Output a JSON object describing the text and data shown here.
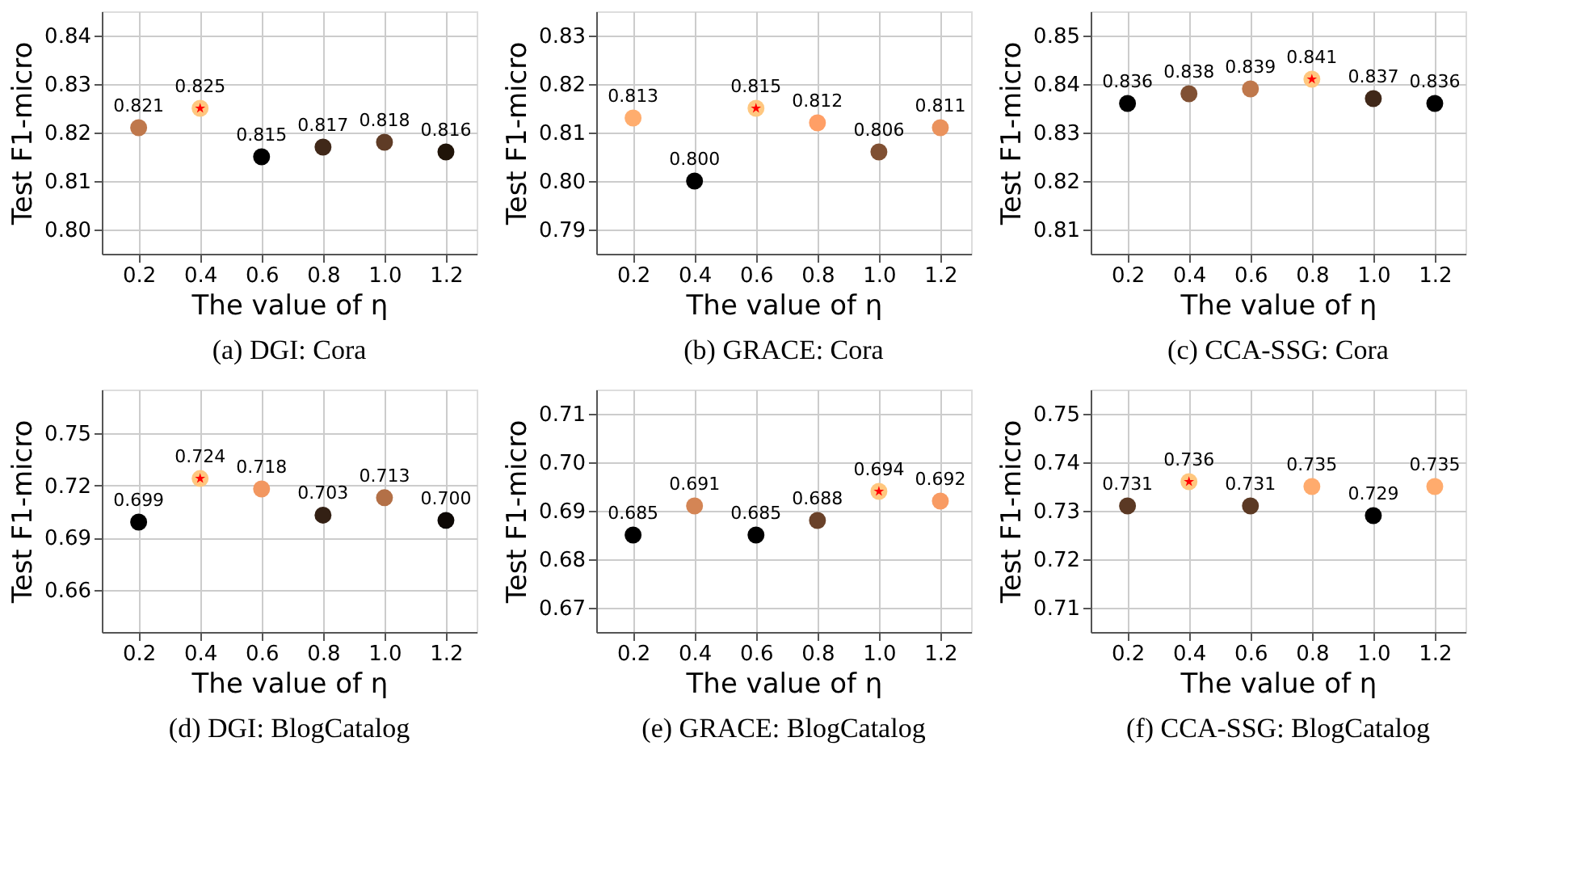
{
  "chart_data": [
    {
      "type": "scatter",
      "title": "(a) DGI: Cora",
      "xlabel": "The value of η",
      "ylabel": "Test F1-micro",
      "x": [
        0.2,
        0.4,
        0.6,
        0.8,
        1.0,
        1.2
      ],
      "xlim": [
        0.08,
        1.3
      ],
      "xticks": [
        {
          "value": 0.2,
          "label": "0.2"
        },
        {
          "value": 0.4,
          "label": "0.4"
        },
        {
          "value": 0.6,
          "label": "0.6"
        },
        {
          "value": 0.8,
          "label": "0.8"
        },
        {
          "value": 1.0,
          "label": "1.0"
        },
        {
          "value": 1.2,
          "label": "1.2"
        }
      ],
      "ylim": [
        0.795,
        0.845
      ],
      "yticks": [
        {
          "value": 0.8,
          "label": "0.80"
        },
        {
          "value": 0.81,
          "label": "0.81"
        },
        {
          "value": 0.82,
          "label": "0.82"
        },
        {
          "value": 0.83,
          "label": "0.83"
        },
        {
          "value": 0.84,
          "label": "0.84"
        }
      ],
      "grid": true,
      "marker": "circle",
      "series": [
        {
          "values": [
            0.821,
            0.825,
            0.815,
            0.817,
            0.818,
            0.816
          ],
          "colors": [
            "#bf784c",
            "#ffc77f",
            "#000000",
            "#402819",
            "#5f3c26",
            "#201409"
          ],
          "data_labels": true
        },
        {
          "x": [
            0.4
          ],
          "values": [
            0.825
          ],
          "color": "#ff0000",
          "marker": "star"
        }
      ]
    },
    {
      "type": "scatter",
      "title": "(b) GRACE: Cora",
      "xlabel": "The value of η",
      "ylabel": "Test F1-micro",
      "x": [
        0.2,
        0.4,
        0.6,
        0.8,
        1.0,
        1.2
      ],
      "xlim": [
        0.08,
        1.3
      ],
      "xticks": [
        {
          "value": 0.2,
          "label": "0.2"
        },
        {
          "value": 0.4,
          "label": "0.4"
        },
        {
          "value": 0.6,
          "label": "0.6"
        },
        {
          "value": 0.8,
          "label": "0.8"
        },
        {
          "value": 1.0,
          "label": "1.0"
        },
        {
          "value": 1.2,
          "label": "1.2"
        }
      ],
      "ylim": [
        0.785,
        0.835
      ],
      "yticks": [
        {
          "value": 0.79,
          "label": "0.79"
        },
        {
          "value": 0.8,
          "label": "0.80"
        },
        {
          "value": 0.81,
          "label": "0.81"
        },
        {
          "value": 0.82,
          "label": "0.82"
        },
        {
          "value": 0.83,
          "label": "0.83"
        }
      ],
      "grid": true,
      "marker": "circle",
      "series": [
        {
          "values": [
            0.813,
            0.8,
            0.815,
            0.812,
            0.806,
            0.811
          ],
          "colors": [
            "#ffad6e",
            "#000000",
            "#ffc77f",
            "#ff9f66",
            "#805033",
            "#ea925d"
          ],
          "data_labels": true,
          "value_labels": [
            "0.813",
            "0.800",
            "0.815",
            "0.812",
            "0.806",
            "0.811"
          ]
        },
        {
          "x": [
            0.6
          ],
          "values": [
            0.815
          ],
          "color": "#ff0000",
          "marker": "star"
        }
      ]
    },
    {
      "type": "scatter",
      "title": "(c) CCA-SSG: Cora",
      "xlabel": "The value of η",
      "ylabel": "Test F1-micro",
      "x": [
        0.2,
        0.4,
        0.6,
        0.8,
        1.0,
        1.2
      ],
      "xlim": [
        0.08,
        1.3
      ],
      "xticks": [
        {
          "value": 0.2,
          "label": "0.2"
        },
        {
          "value": 0.4,
          "label": "0.4"
        },
        {
          "value": 0.6,
          "label": "0.6"
        },
        {
          "value": 0.8,
          "label": "0.8"
        },
        {
          "value": 1.0,
          "label": "1.0"
        },
        {
          "value": 1.2,
          "label": "1.2"
        }
      ],
      "ylim": [
        0.805,
        0.855
      ],
      "yticks": [
        {
          "value": 0.81,
          "label": "0.81"
        },
        {
          "value": 0.82,
          "label": "0.82"
        },
        {
          "value": 0.83,
          "label": "0.83"
        },
        {
          "value": 0.84,
          "label": "0.84"
        },
        {
          "value": 0.85,
          "label": "0.85"
        }
      ],
      "grid": true,
      "marker": "circle",
      "series": [
        {
          "values": [
            0.836,
            0.838,
            0.839,
            0.841,
            0.837,
            0.836
          ],
          "colors": [
            "#000000",
            "#805033",
            "#bf784c",
            "#ffc77f",
            "#402819",
            "#000000"
          ],
          "data_labels": true
        },
        {
          "x": [
            0.8
          ],
          "values": [
            0.841
          ],
          "color": "#ff0000",
          "marker": "star"
        }
      ]
    },
    {
      "type": "scatter",
      "title": "(d) DGI: BlogCatalog",
      "xlabel": "The value of η",
      "ylabel": "Test F1-micro",
      "x": [
        0.2,
        0.4,
        0.6,
        0.8,
        1.0,
        1.2
      ],
      "xlim": [
        0.08,
        1.3
      ],
      "xticks": [
        {
          "value": 0.2,
          "label": "0.2"
        },
        {
          "value": 0.4,
          "label": "0.4"
        },
        {
          "value": 0.6,
          "label": "0.6"
        },
        {
          "value": 0.8,
          "label": "0.8"
        },
        {
          "value": 1.0,
          "label": "1.0"
        },
        {
          "value": 1.2,
          "label": "1.2"
        }
      ],
      "ylim": [
        0.636,
        0.775
      ],
      "yticks": [
        {
          "value": 0.66,
          "label": "0.66"
        },
        {
          "value": 0.69,
          "label": "0.69"
        },
        {
          "value": 0.72,
          "label": "0.72"
        },
        {
          "value": 0.75,
          "label": "0.75"
        }
      ],
      "grid": true,
      "marker": "circle",
      "series": [
        {
          "values": [
            0.699,
            0.724,
            0.718,
            0.703,
            0.713,
            0.7
          ],
          "colors": [
            "#000000",
            "#ffc77f",
            "#f29760",
            "#332014",
            "#b37047",
            "#0d0805"
          ],
          "data_labels": true,
          "value_labels": [
            "0.699",
            "0.724",
            "0.718",
            "0.703",
            "0.713",
            "0.700"
          ]
        },
        {
          "x": [
            0.4
          ],
          "values": [
            0.724
          ],
          "color": "#ff0000",
          "marker": "star"
        }
      ]
    },
    {
      "type": "scatter",
      "title": "(e) GRACE: BlogCatalog",
      "xlabel": "The value of η",
      "ylabel": "Test F1-micro",
      "x": [
        0.2,
        0.4,
        0.6,
        0.8,
        1.0,
        1.2
      ],
      "xlim": [
        0.08,
        1.3
      ],
      "xticks": [
        {
          "value": 0.2,
          "label": "0.2"
        },
        {
          "value": 0.4,
          "label": "0.4"
        },
        {
          "value": 0.6,
          "label": "0.6"
        },
        {
          "value": 0.8,
          "label": "0.8"
        },
        {
          "value": 1.0,
          "label": "1.0"
        },
        {
          "value": 1.2,
          "label": "1.2"
        }
      ],
      "ylim": [
        0.665,
        0.715
      ],
      "yticks": [
        {
          "value": 0.67,
          "label": "0.67"
        },
        {
          "value": 0.68,
          "label": "0.68"
        },
        {
          "value": 0.69,
          "label": "0.69"
        },
        {
          "value": 0.7,
          "label": "0.70"
        },
        {
          "value": 0.71,
          "label": "0.71"
        }
      ],
      "grid": true,
      "marker": "circle",
      "series": [
        {
          "values": [
            0.685,
            0.691,
            0.685,
            0.688,
            0.694,
            0.692
          ],
          "colors": [
            "#000000",
            "#d48555",
            "#000000",
            "#6a422a",
            "#ffc77f",
            "#f89b63"
          ],
          "data_labels": true
        },
        {
          "x": [
            1.0
          ],
          "values": [
            0.694
          ],
          "color": "#ff0000",
          "marker": "star"
        }
      ]
    },
    {
      "type": "scatter",
      "title": "(f) CCA-SSG: BlogCatalog",
      "xlabel": "The value of η",
      "ylabel": "Test F1-micro",
      "x": [
        0.2,
        0.4,
        0.6,
        0.8,
        1.0,
        1.2
      ],
      "xlim": [
        0.08,
        1.3
      ],
      "xticks": [
        {
          "value": 0.2,
          "label": "0.2"
        },
        {
          "value": 0.4,
          "label": "0.4"
        },
        {
          "value": 0.6,
          "label": "0.6"
        },
        {
          "value": 0.8,
          "label": "0.8"
        },
        {
          "value": 1.0,
          "label": "1.0"
        },
        {
          "value": 1.2,
          "label": "1.2"
        }
      ],
      "ylim": [
        0.705,
        0.755
      ],
      "yticks": [
        {
          "value": 0.71,
          "label": "0.71"
        },
        {
          "value": 0.72,
          "label": "0.72"
        },
        {
          "value": 0.73,
          "label": "0.73"
        },
        {
          "value": 0.74,
          "label": "0.74"
        },
        {
          "value": 0.75,
          "label": "0.75"
        }
      ],
      "grid": true,
      "marker": "circle",
      "series": [
        {
          "values": [
            0.731,
            0.736,
            0.731,
            0.735,
            0.729,
            0.735
          ],
          "colors": [
            "#5b3924",
            "#ffc77f",
            "#5b3924",
            "#ffab6d",
            "#000000",
            "#ffab6d"
          ],
          "data_labels": true
        },
        {
          "x": [
            0.4
          ],
          "values": [
            0.736
          ],
          "color": "#ff0000",
          "marker": "star"
        }
      ]
    }
  ]
}
